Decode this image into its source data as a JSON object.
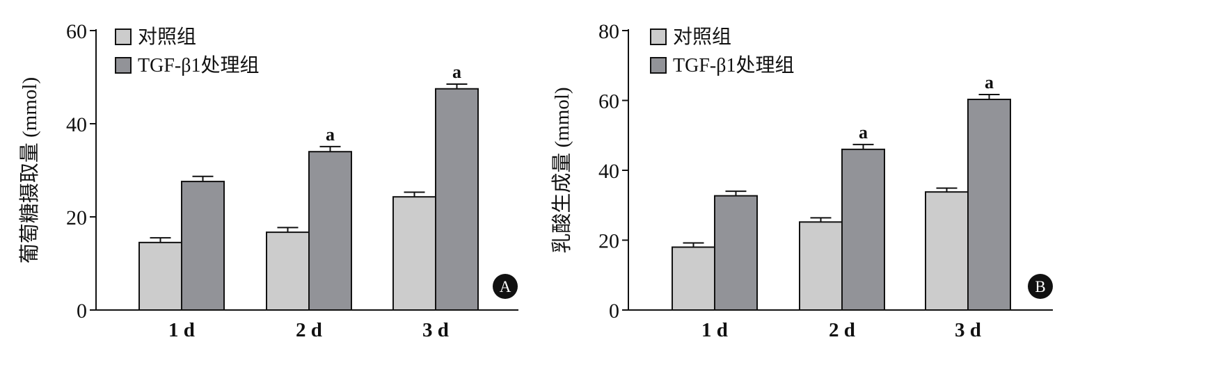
{
  "colors": {
    "control_fill": "#cccccc",
    "treated_fill": "#929398",
    "stroke": "#111111",
    "panel_badge": "#111111",
    "panel_badge_text": "#ffffff"
  },
  "chart_data": [
    {
      "type": "bar",
      "panel": "A",
      "ylabel": "葡萄糖摄取量 (mmol)",
      "categories": [
        "1 d",
        "2 d",
        "3 d"
      ],
      "ylim": [
        0,
        60
      ],
      "yticks": [
        0,
        20,
        40,
        60
      ],
      "legend_position": "top-left",
      "grid": false,
      "series": [
        {
          "name": "对照组",
          "values": [
            14.5,
            16.7,
            24.3
          ],
          "errors": [
            1.0,
            1.0,
            1.0
          ],
          "sig": [
            "",
            "",
            ""
          ]
        },
        {
          "name": "TGF-β1处理组",
          "values": [
            27.6,
            34.0,
            47.5
          ],
          "errors": [
            1.1,
            1.1,
            1.0
          ],
          "sig": [
            "",
            "a",
            "a"
          ]
        }
      ]
    },
    {
      "type": "bar",
      "panel": "B",
      "ylabel": "乳酸生成量 (mmol)",
      "categories": [
        "1 d",
        "2 d",
        "3 d"
      ],
      "ylim": [
        0,
        80
      ],
      "yticks": [
        0,
        20,
        40,
        60,
        80
      ],
      "legend_position": "top-left",
      "grid": false,
      "series": [
        {
          "name": "对照组",
          "values": [
            18.0,
            25.2,
            33.8
          ],
          "errors": [
            1.2,
            1.2,
            1.1
          ],
          "sig": [
            "",
            "",
            ""
          ]
        },
        {
          "name": "TGF-β1处理组",
          "values": [
            32.7,
            46.0,
            60.3
          ],
          "errors": [
            1.3,
            1.4,
            1.4
          ],
          "sig": [
            "",
            "a",
            "a"
          ]
        }
      ]
    }
  ]
}
